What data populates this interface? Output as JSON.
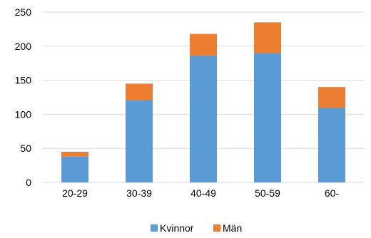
{
  "chart_data": {
    "type": "bar",
    "stacked": true,
    "categories": [
      "20-29",
      "30-39",
      "40-49",
      "50-59",
      "60-"
    ],
    "series": [
      {
        "name": "Kvinnor",
        "values": [
          38,
          121,
          186,
          190,
          110
        ],
        "color": "#5b9bd5"
      },
      {
        "name": "Män",
        "values": [
          7,
          24,
          32,
          45,
          30
        ],
        "color": "#ed7d31"
      }
    ],
    "title": "",
    "xlabel": "",
    "ylabel": "",
    "ylim": [
      0,
      250
    ],
    "yticks": [
      "0",
      "50",
      "100",
      "150",
      "200",
      "250"
    ],
    "grid": true,
    "legend_position": "bottom"
  }
}
